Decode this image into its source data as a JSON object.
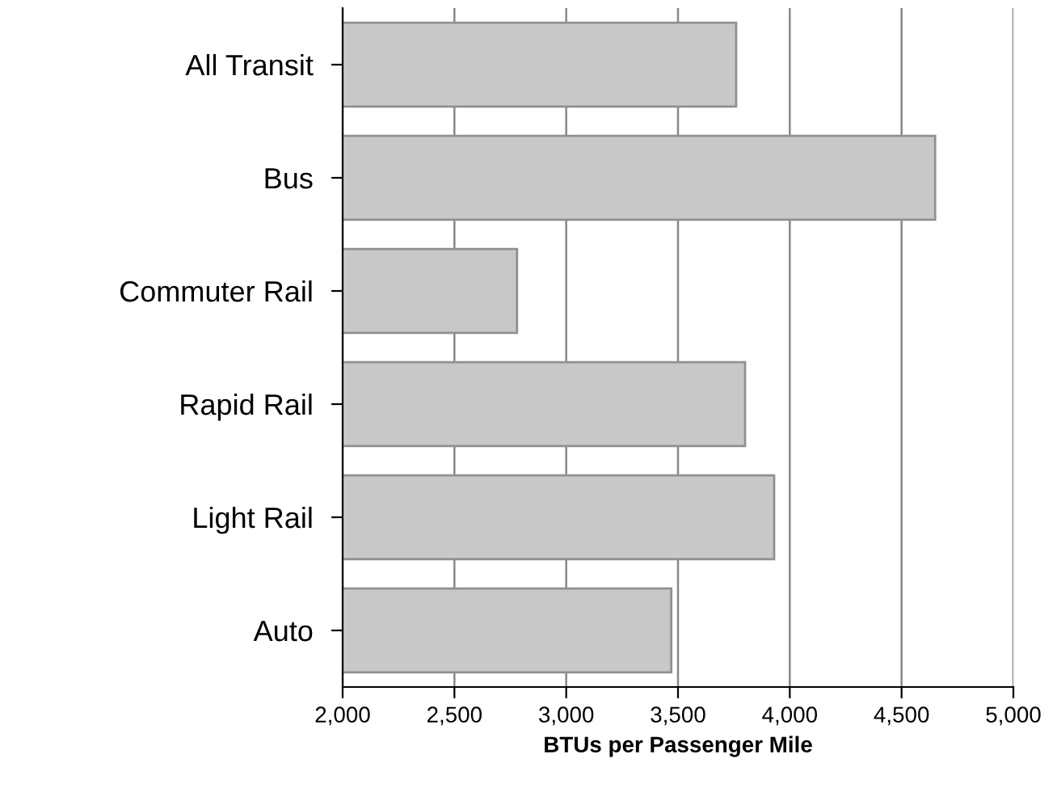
{
  "chart_data": {
    "type": "bar",
    "orientation": "horizontal",
    "categories": [
      "All Transit",
      "Bus",
      "Commuter Rail",
      "Rapid Rail",
      "Light Rail",
      "Auto"
    ],
    "values": [
      3760,
      4650,
      2780,
      3800,
      3930,
      3470
    ],
    "color": "#c8c8c8",
    "xlabel": "BTUs per Passenger Mile",
    "xlim": [
      2000,
      5000
    ],
    "xticks": [
      {
        "value": 2000,
        "label": "2,000"
      },
      {
        "value": 2500,
        "label": "2,500"
      },
      {
        "value": 3000,
        "label": "3,000"
      },
      {
        "value": 3500,
        "label": "3,500"
      },
      {
        "value": 4000,
        "label": "4,000"
      },
      {
        "value": 4500,
        "label": "4,500"
      },
      {
        "value": 5000,
        "label": "5,000"
      }
    ],
    "grid": "x"
  }
}
